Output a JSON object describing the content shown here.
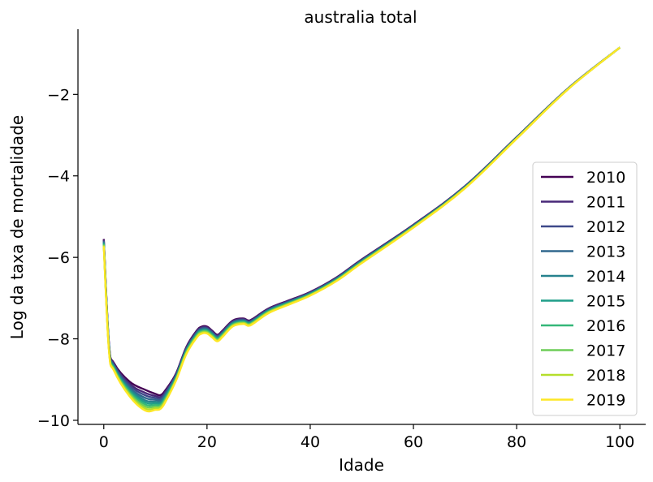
{
  "chart_data": {
    "type": "line",
    "title": "australia total",
    "xlabel": "Idade",
    "ylabel": "Log da taxa de mortalidade",
    "xlim": [
      -5,
      105
    ],
    "ylim": [
      -10.1,
      -0.4
    ],
    "xticks": [
      0,
      20,
      40,
      60,
      80,
      100
    ],
    "xtick_labels": [
      "0",
      "20",
      "40",
      "60",
      "80",
      "100"
    ],
    "yticks": [
      -10,
      -8,
      -6,
      -4,
      -2
    ],
    "ytick_labels": [
      "−10",
      "−8",
      "−6",
      "−4",
      "−2"
    ],
    "grid": false,
    "legend_position": "right",
    "x": [
      0,
      1,
      2,
      5,
      8,
      10,
      11,
      12,
      14,
      16,
      18,
      19,
      20,
      21,
      22,
      23,
      25,
      27,
      28,
      29,
      32,
      36,
      40,
      45,
      50,
      60,
      70,
      80,
      90,
      100
    ],
    "base": [
      -5.55,
      -8.1,
      -8.6,
      -9.05,
      -9.25,
      -9.35,
      -9.38,
      -9.25,
      -8.85,
      -8.2,
      -7.8,
      -7.7,
      -7.7,
      -7.8,
      -7.9,
      -7.8,
      -7.55,
      -7.5,
      -7.55,
      -7.5,
      -7.25,
      -7.05,
      -6.85,
      -6.5,
      -6.05,
      -5.2,
      -4.25,
      -3.05,
      -1.85,
      -0.85
    ],
    "series": [
      {
        "name": "2010",
        "color": "#440154",
        "shift": [
          0,
          0,
          0,
          0,
          0,
          0,
          0,
          0,
          0,
          0
        ],
        "lowdip": 0.0
      },
      {
        "name": "2011",
        "color": "#482878",
        "shift": [
          0.02,
          0.03,
          0.02,
          0.02,
          0.01,
          0.01,
          0.01,
          0.01,
          0.0,
          0.0
        ],
        "lowdip": 0.05
      },
      {
        "name": "2012",
        "color": "#3e4989",
        "shift": [
          0.04,
          0.05,
          0.04,
          0.04,
          0.03,
          0.02,
          0.02,
          0.02,
          0.01,
          0.0
        ],
        "lowdip": 0.09
      },
      {
        "name": "2013",
        "color": "#31688e",
        "shift": [
          0.06,
          0.08,
          0.06,
          0.06,
          0.04,
          0.03,
          0.03,
          0.02,
          0.01,
          0.0
        ],
        "lowdip": 0.13
      },
      {
        "name": "2014",
        "color": "#26828e",
        "shift": [
          0.08,
          0.1,
          0.08,
          0.08,
          0.05,
          0.04,
          0.04,
          0.03,
          0.02,
          0.0
        ],
        "lowdip": 0.17
      },
      {
        "name": "2015",
        "color": "#1f9e89",
        "shift": [
          0.1,
          0.12,
          0.1,
          0.09,
          0.06,
          0.05,
          0.05,
          0.04,
          0.02,
          0.0
        ],
        "lowdip": 0.2
      },
      {
        "name": "2016",
        "color": "#35b779",
        "shift": [
          0.12,
          0.14,
          0.12,
          0.11,
          0.08,
          0.06,
          0.06,
          0.05,
          0.03,
          0.0
        ],
        "lowdip": 0.23
      },
      {
        "name": "2017",
        "color": "#6ece58",
        "shift": [
          0.14,
          0.16,
          0.14,
          0.13,
          0.09,
          0.07,
          0.07,
          0.05,
          0.03,
          0.0
        ],
        "lowdip": 0.26
      },
      {
        "name": "2018",
        "color": "#b5de2b",
        "shift": [
          0.16,
          0.18,
          0.16,
          0.15,
          0.1,
          0.08,
          0.08,
          0.06,
          0.03,
          0.0
        ],
        "lowdip": 0.29
      },
      {
        "name": "2019",
        "color": "#fde725",
        "shift": [
          0.18,
          0.2,
          0.18,
          0.17,
          0.12,
          0.09,
          0.09,
          0.07,
          0.04,
          0.0
        ],
        "lowdip": 0.32
      }
    ]
  }
}
